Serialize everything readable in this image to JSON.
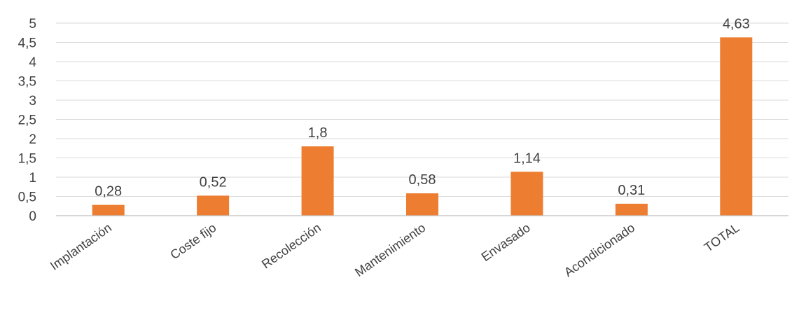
{
  "chart_data": {
    "type": "bar",
    "title": "",
    "xlabel": "",
    "ylabel": "",
    "categories": [
      "Implantación",
      "Coste fijo",
      "Recolección",
      "Mantenimiento",
      "Envasado",
      "Acondicionado",
      "TOTAL"
    ],
    "values": [
      0.28,
      0.52,
      1.8,
      0.58,
      1.14,
      0.31,
      4.63
    ],
    "data_labels": [
      "0,28",
      "0,52",
      "1,8",
      "0,58",
      "1,14",
      "0,31",
      "4,63"
    ],
    "ylim": [
      0,
      5
    ],
    "y_ticks": [
      0,
      0.5,
      1,
      1.5,
      2,
      2.5,
      3,
      3.5,
      4,
      4.5,
      5
    ],
    "y_tick_labels": [
      "0",
      "0,5",
      "1",
      "1,5",
      "2",
      "2,5",
      "3",
      "3,5",
      "4",
      "4,5",
      "5"
    ],
    "grid": true,
    "legend": "none",
    "bar_color": "#ed7d31"
  }
}
